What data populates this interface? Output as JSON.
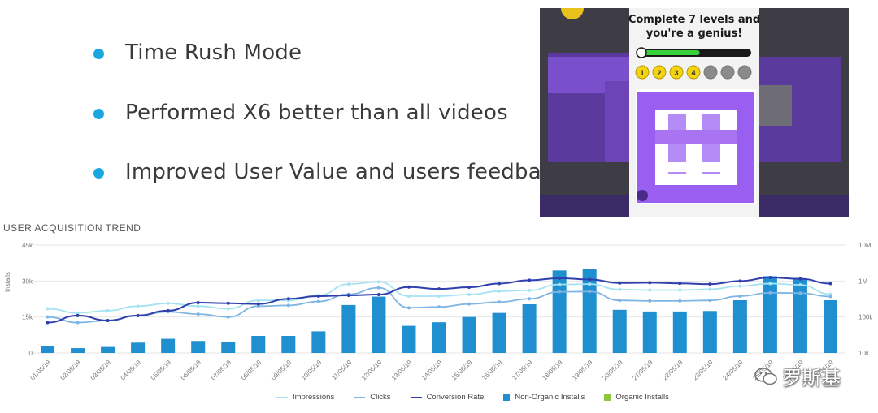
{
  "bullets": [
    {
      "text": "Time Rush Mode"
    },
    {
      "text": "Performed X6 better than all videos"
    },
    {
      "text": "Improved User Value and users feedback"
    }
  ],
  "game_preview": {
    "headline": "Complete 7 levels and you're a genius!",
    "headline_line1": "Complete 7 levels and",
    "headline_line2": "you're a genius!",
    "level_badges": [
      "1",
      "2",
      "3",
      "4",
      "",
      "",
      ""
    ],
    "progress": 0.55
  },
  "watermark": {
    "text": "罗斯基"
  },
  "chart_data": {
    "type": "bar+line",
    "title": "USER ACQUISITION TREND",
    "ylabel": "Installs",
    "y_ticks": [
      "45k",
      "30k",
      "15k",
      "0"
    ],
    "ylim": [
      0,
      45000
    ],
    "y2_ticks": [
      "10M",
      "1M",
      "100k",
      "10k"
    ],
    "y2_scale": "log",
    "y2lim": [
      10000,
      10000000
    ],
    "categories": [
      "01/05/19",
      "02/05/19",
      "03/05/19",
      "04/05/19",
      "05/05/19",
      "06/05/19",
      "07/05/19",
      "08/05/19",
      "09/05/19",
      "10/05/19",
      "11/05/19",
      "12/05/19",
      "13/05/19",
      "14/05/19",
      "15/05/19",
      "16/05/19",
      "17/05/19",
      "18/05/19",
      "19/05/19",
      "20/05/19",
      "21/05/19",
      "22/05/19",
      "23/05/19",
      "24/05/19",
      "25/05/19",
      "26/05/19",
      "27/05/19"
    ],
    "bar_series": [
      {
        "name": "Non-Organic Installs",
        "color": "#1f8fd0",
        "values": [
          3000,
          2000,
          2500,
          4300,
          5900,
          5000,
          4400,
          7100,
          7100,
          9000,
          20000,
          23500,
          11300,
          12800,
          15000,
          16700,
          20300,
          34400,
          34900,
          18000,
          17300,
          17300,
          17500,
          22000,
          32000,
          30800,
          22000
        ]
      }
    ],
    "line_series": [
      {
        "name": "Impressions",
        "color": "#a6e3f2",
        "values": [
          170000,
          130000,
          150000,
          200000,
          240000,
          200000,
          170000,
          290000,
          290000,
          400000,
          820000,
          950000,
          380000,
          380000,
          420000,
          520000,
          550000,
          800000,
          820000,
          580000,
          560000,
          560000,
          590000,
          720000,
          850000,
          780000,
          430000
        ]
      },
      {
        "name": "Clicks",
        "color": "#7fb5e3",
        "values": [
          100000,
          70000,
          80000,
          110000,
          140000,
          120000,
          100000,
          200000,
          210000,
          270000,
          430000,
          650000,
          180000,
          190000,
          230000,
          260000,
          320000,
          500000,
          510000,
          290000,
          280000,
          280000,
          290000,
          380000,
          470000,
          460000,
          370000
        ]
      },
      {
        "name": "Conversion Rate",
        "color": "#2f3fad",
        "values": [
          70000,
          110000,
          80000,
          110000,
          150000,
          250000,
          240000,
          230000,
          320000,
          380000,
          400000,
          420000,
          680000,
          600000,
          670000,
          850000,
          1050000,
          1200000,
          1100000,
          880000,
          900000,
          860000,
          820000,
          1000000,
          1250000,
          1150000,
          850000
        ]
      }
    ],
    "legend": [
      {
        "name": "Impressions",
        "kind": "line",
        "color": "#a6e3f2"
      },
      {
        "name": "Clicks",
        "kind": "line",
        "color": "#7fb5e3"
      },
      {
        "name": "Conversion Rate",
        "kind": "line",
        "color": "#2f3fad"
      },
      {
        "name": "Non-Organic Installs",
        "kind": "bar",
        "color": "#1f8fd0"
      },
      {
        "name": "Organic Installs",
        "kind": "bar",
        "color": "#8dc63f"
      }
    ],
    "legend_position": "bottom-center",
    "grid": true
  }
}
